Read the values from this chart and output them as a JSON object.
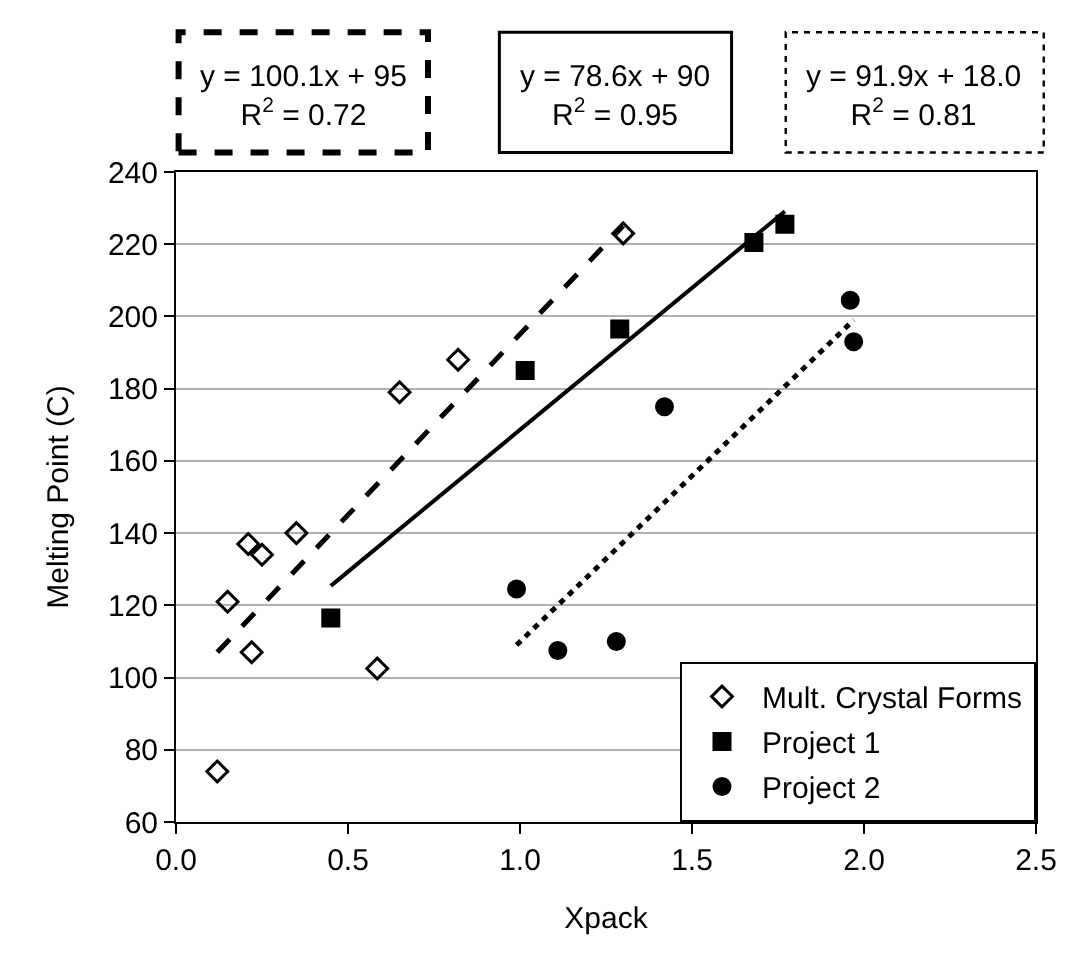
{
  "chart_data": {
    "type": "scatter",
    "xlabel": "Xpack",
    "ylabel": "Melting Point (C)",
    "xlim": [
      0,
      2.5
    ],
    "ylim": [
      60,
      240
    ],
    "xticks": [
      {
        "value": 0,
        "label": "0.0"
      },
      {
        "value": 0.5,
        "label": "0.5"
      },
      {
        "value": 1,
        "label": "1.0"
      },
      {
        "value": 1.5,
        "label": "1.5"
      },
      {
        "value": 2,
        "label": "2.0"
      },
      {
        "value": 2.5,
        "label": "2.5"
      }
    ],
    "yticks": [
      60,
      80,
      100,
      120,
      140,
      160,
      180,
      200,
      220,
      240
    ],
    "grid": "y",
    "legend": "bottom right",
    "annotations": [
      "y = 100.1x + 95\nR$^{2}$ = 0.72",
      "y = 78.6x + 90\nR$^{2}$ = 0.95",
      "y = 91.9x + 18.0\nR$^{2}$ = 0.81"
    ],
    "series": [
      {
        "name": "Mult. Crystal Forms",
        "color": "#000000",
        "marker": "diamond",
        "x": [
          0.12,
          0.15,
          0.21,
          0.25,
          0.22,
          0.35,
          0.585,
          0.65,
          0.82,
          1.3
        ],
        "values": [
          74,
          121,
          137,
          134,
          107,
          140,
          102.5,
          179,
          188,
          223
        ]
      },
      {
        "name": "Project 1",
        "color": "#000000",
        "marker": "square",
        "x": [
          0.45,
          1.015,
          1.29,
          1.68,
          1.77
        ],
        "values": [
          116.5,
          185,
          196.5,
          220.5,
          225.5
        ]
      },
      {
        "name": "Project 2",
        "color": "#000000",
        "marker": "circle",
        "x": [
          0.99,
          1.11,
          1.28,
          1.42,
          1.96,
          1.97
        ],
        "values": [
          124.5,
          107.5,
          110,
          175,
          204.5,
          193
        ]
      },
      {
        "type": "line",
        "color": "#000000",
        "line_style": "dashed",
        "x": [
          0.12,
          1.3
        ],
        "values": [
          107.0,
          225.1
        ]
      },
      {
        "type": "line",
        "color": "#000000",
        "line_style": "solid",
        "x": [
          0.45,
          1.77
        ],
        "values": [
          125.4,
          229.1
        ]
      },
      {
        "type": "line",
        "color": "#000000",
        "line_style": "dotted",
        "x": [
          0.99,
          1.97
        ],
        "values": [
          109.0,
          199.0
        ]
      }
    ]
  }
}
